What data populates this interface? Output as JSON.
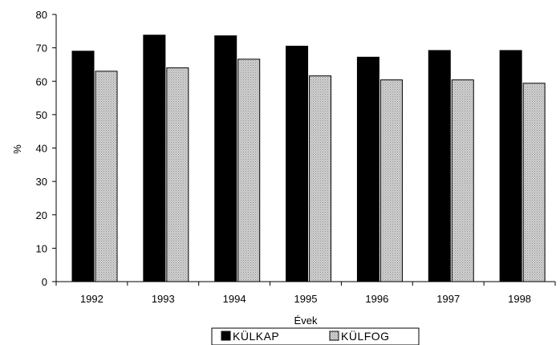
{
  "chart_data": {
    "type": "bar",
    "title": "",
    "xlabel": "Évek",
    "ylabel": "%",
    "categories": [
      "1992",
      "1993",
      "1994",
      "1995",
      "1996",
      "1997",
      "1998"
    ],
    "series": [
      {
        "name": "KÜLKAP",
        "values": [
          69.0,
          73.8,
          73.6,
          70.5,
          67.2,
          69.2,
          69.2
        ],
        "color": "#000000",
        "fill": "solid"
      },
      {
        "name": "KÜLFOG",
        "values": [
          63.0,
          64.0,
          66.6,
          61.6,
          60.4,
          60.4,
          59.4
        ],
        "color": "#c8c8c8",
        "fill": "dotted"
      }
    ],
    "ylim": [
      0,
      80
    ],
    "yticks": [
      0,
      10,
      20,
      30,
      40,
      50,
      60,
      70,
      80
    ],
    "grid": false,
    "legend_position": "bottom"
  }
}
